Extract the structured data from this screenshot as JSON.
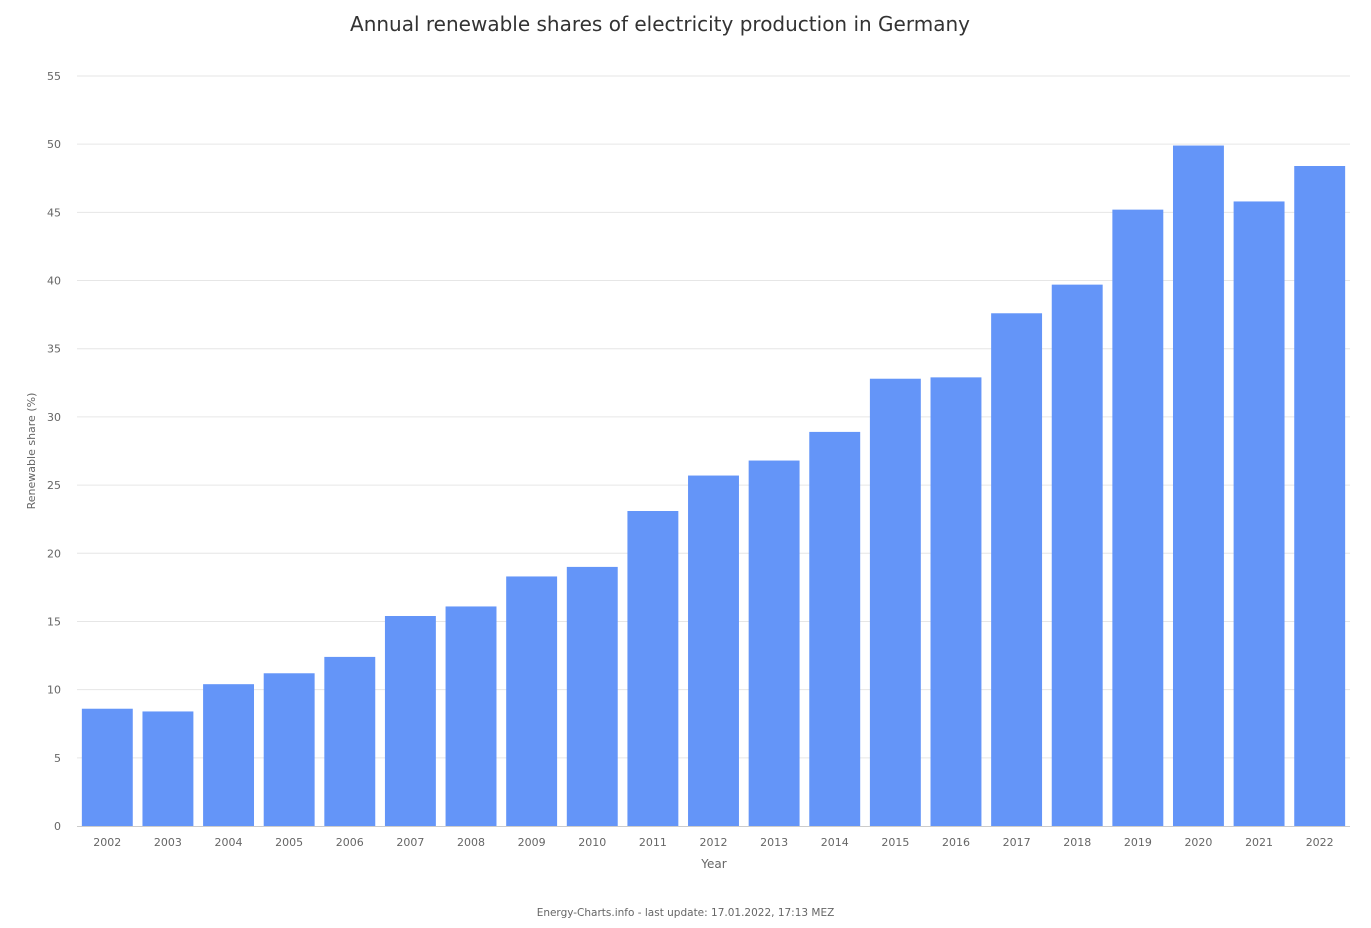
{
  "chart_data": {
    "type": "bar",
    "title": "Annual renewable shares of electricity production in Germany",
    "xlabel": "Year",
    "ylabel": "Renewable share (%)",
    "ylim": [
      0,
      55
    ],
    "yticks": [
      0,
      5,
      10,
      15,
      20,
      25,
      30,
      35,
      40,
      45,
      50,
      55
    ],
    "grid": true,
    "legend": "none",
    "categories": [
      "2002",
      "2003",
      "2004",
      "2005",
      "2006",
      "2007",
      "2008",
      "2009",
      "2010",
      "2011",
      "2012",
      "2013",
      "2014",
      "2015",
      "2016",
      "2017",
      "2018",
      "2019",
      "2020",
      "2021",
      "2022"
    ],
    "values": [
      8.6,
      8.4,
      10.4,
      11.2,
      12.4,
      15.4,
      16.1,
      18.3,
      19.0,
      23.1,
      25.7,
      26.8,
      28.9,
      32.8,
      32.9,
      37.6,
      39.7,
      45.2,
      49.9,
      45.8,
      48.4
    ],
    "color": "#6495f8"
  },
  "footer": {
    "credit": "Energy-Charts.info - last update: 17.01.2022, 17:13 MEZ"
  }
}
